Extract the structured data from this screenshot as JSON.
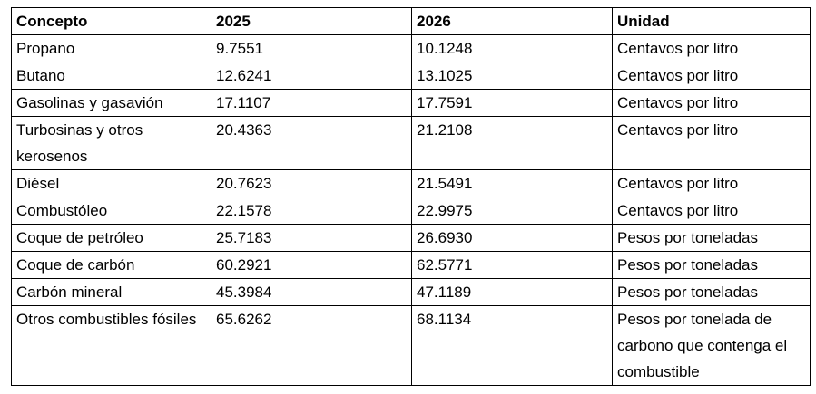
{
  "table": {
    "header": [
      "Concepto",
      "2025",
      "2026",
      "Unidad"
    ],
    "rows": [
      [
        "Propano",
        "9.7551",
        "10.1248",
        "Centavos por litro"
      ],
      [
        "Butano",
        "12.6241",
        "13.1025",
        "Centavos por litro"
      ],
      [
        "Gasolinas y gasavión",
        "17.1107",
        "17.7591",
        "Centavos por litro"
      ],
      [
        "Turbosinas y otros kerosenos",
        "20.4363",
        "21.2108",
        "Centavos por litro"
      ],
      [
        "Diésel",
        "20.7623",
        "21.5491",
        "Centavos por litro"
      ],
      [
        "Combustóleo",
        "22.1578",
        "22.9975",
        "Centavos por litro"
      ],
      [
        "Coque de petróleo",
        "25.7183",
        "26.6930",
        "Pesos por toneladas"
      ],
      [
        "Coque de carbón",
        "60.2921",
        "62.5771",
        "Pesos por toneladas"
      ],
      [
        "Carbón mineral",
        "45.3984",
        "47.1189",
        "Pesos por toneladas"
      ],
      [
        "Otros combustibles fósiles",
        "65.6262",
        "68.1134",
        "Pesos por tonelada de carbono que contenga el combustible"
      ]
    ]
  }
}
